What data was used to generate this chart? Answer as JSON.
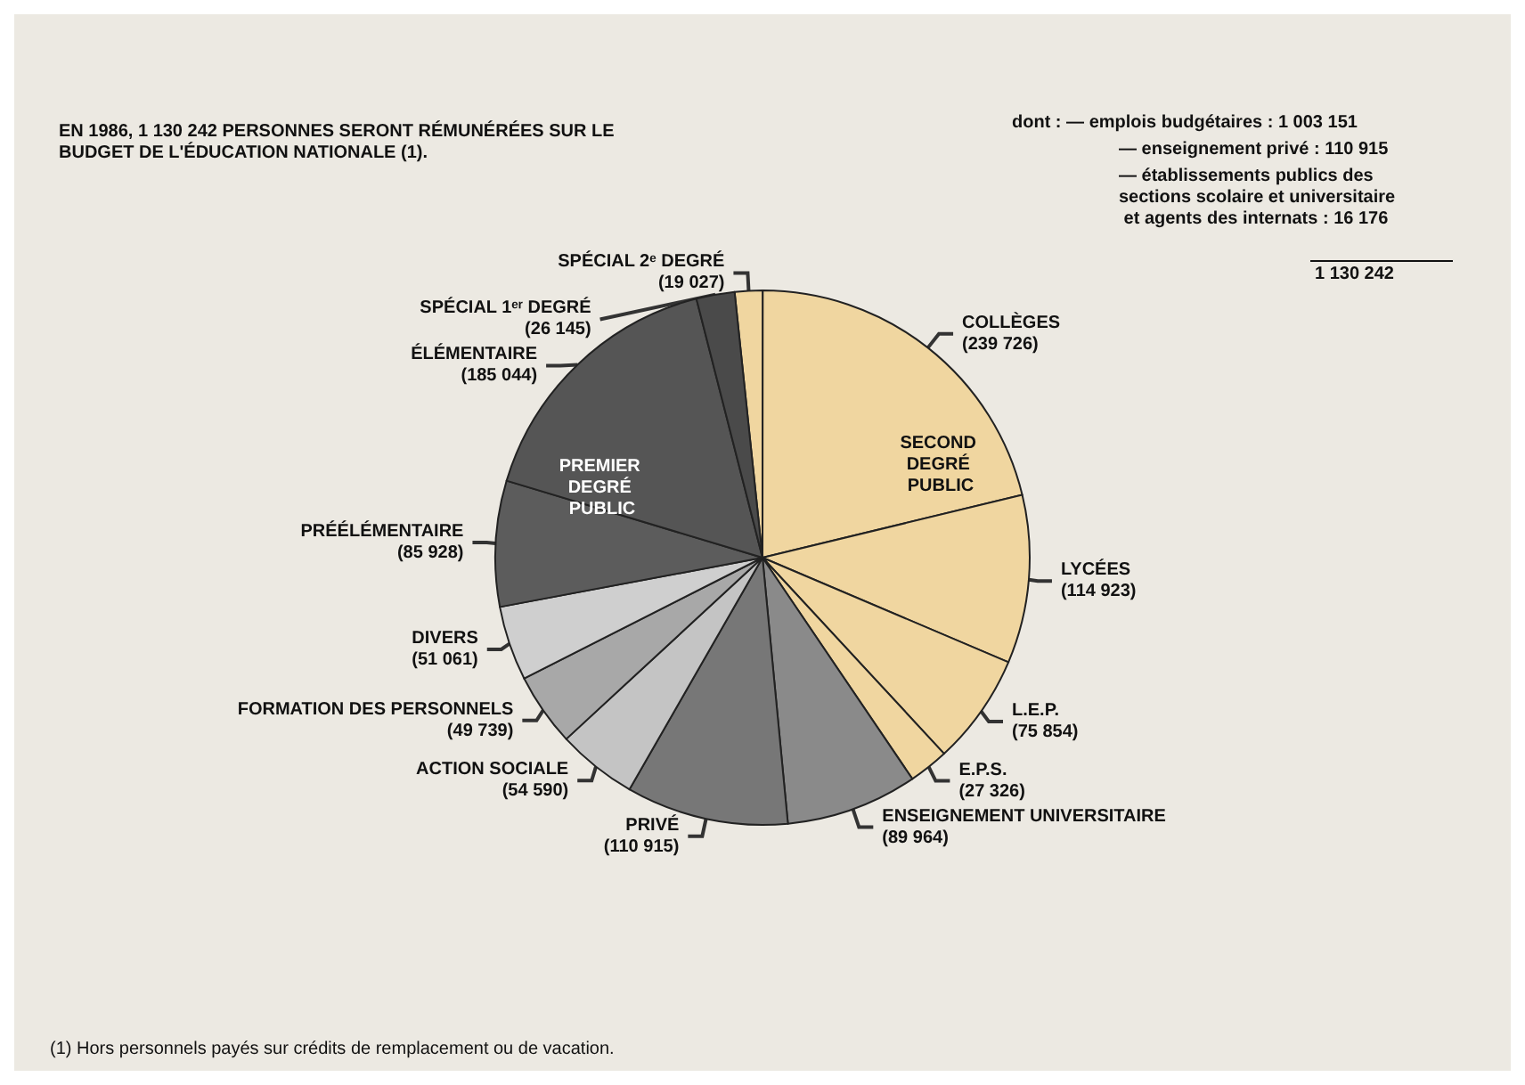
{
  "chart_data": {
    "type": "pie",
    "title": "EN 1986, 1 130 242 PERSONNES SERONT RÉMUNÉRÉES SUR LE BUDGET DE L'ÉDUCATION NATIONALE (1).",
    "categories": [
      "SPÉCIAL 2ᵉ DEGRÉ",
      "COLLÈGES",
      "LYCÉES",
      "L.E.P.",
      "E.P.S.",
      "ENSEIGNEMENT UNIVERSITAIRE",
      "PRIVÉ",
      "ACTION SOCIALE",
      "FORMATION DES PERSONNELS",
      "DIVERS",
      "PRÉÉLÉMENTAIRE",
      "ÉLÉMENTAIRE",
      "SPÉCIAL 1ᵉʳ DEGRÉ"
    ],
    "values": [
      19027,
      239726,
      114923,
      75854,
      27326,
      89964,
      110915,
      54590,
      49739,
      51061,
      85928,
      185044,
      26145
    ],
    "value_labels": [
      "(19 027)",
      "(239 726)",
      "(114 923)",
      "(75 854)",
      "(27 326)",
      "(89 964)",
      "(110 915)",
      "(54 590)",
      "(49 739)",
      "(51 061)",
      "(85 928)",
      "(185 044)",
      "(26 145)"
    ],
    "colors": [
      "#f0d6a0",
      "#f0d6a0",
      "#f0d6a0",
      "#f0d6a0",
      "#f0d6a0",
      "#8a8a8a",
      "#777777",
      "#c4c4c4",
      "#a8a8a8",
      "#cfcfcf",
      "#5c5c5c",
      "#555555",
      "#4a4a4a"
    ],
    "annotations": [
      "SECOND DEGRÉ PUBLIC",
      "PREMIER DEGRÉ PUBLIC",
      "dont : — emplois budgétaires : 1 003 151",
      "— enseignement privé : 110 915",
      "— établissements publics des sections scolaire et universitaire et agents des internats : 16 176",
      "1 130 242",
      "(1) Hors personnels payés sur crédits de remplacement ou de vacation."
    ],
    "legend": false
  }
}
